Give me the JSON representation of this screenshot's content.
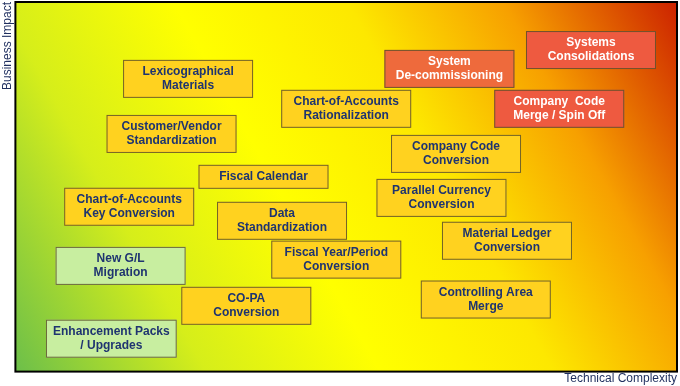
{
  "chart_data": {
    "type": "scatter",
    "x_label": "Technical Complexity",
    "y_label": "Business Impact",
    "xlim": [
      0,
      100
    ],
    "ylim": [
      0,
      100
    ],
    "grid": false,
    "tick_labels": false,
    "categories": [
      "Lexicographical\nMaterials",
      "Customer/Vendor\nStandardization",
      "Chart-of-Accounts\nRationalization",
      "System\nDe-commissioning",
      "Systems\nConsolidations",
      "Company  Code\nMerge / Spin Off",
      "Company Code\nConversion",
      "Fiscal Calendar",
      "Chart-of-Accounts\nKey Conversion",
      "Data\nStandardization",
      "Parallel Currency\nConversion",
      "New G/L\nMigration",
      "Fiscal Year/Period\nConversion",
      "Material Ledger\nConversion",
      "CO-PA\nConversion",
      "Controlling Area\nMerge",
      "Enhancement Packs\n/ Upgrades"
    ],
    "x": [
      26.1,
      23.6,
      50.0,
      65.6,
      87.0,
      82.2,
      66.6,
      37.5,
      17.2,
      40.3,
      64.4,
      15.9,
      48.5,
      74.3,
      34.9,
      71.1,
      14.5
    ],
    "values": [
      79.2,
      64.3,
      71.1,
      81.9,
      87.0,
      71.1,
      58.9,
      52.7,
      44.6,
      40.8,
      47.0,
      28.6,
      30.3,
      35.4,
      17.8,
      19.5,
      8.9
    ],
    "colors": [
      "#ffd21f",
      "#ffd21f",
      "#ffd21f",
      "#ee6a3c",
      "#ee5a40",
      "#ee5a40",
      "#ffd21f",
      "#ffd21f",
      "#ffd21f",
      "#ffd21f",
      "#ffd21f",
      "#c8eea0",
      "#ffd21f",
      "#ffd21f",
      "#ffd21f",
      "#ffd21f",
      "#c8eea0"
    ]
  }
}
